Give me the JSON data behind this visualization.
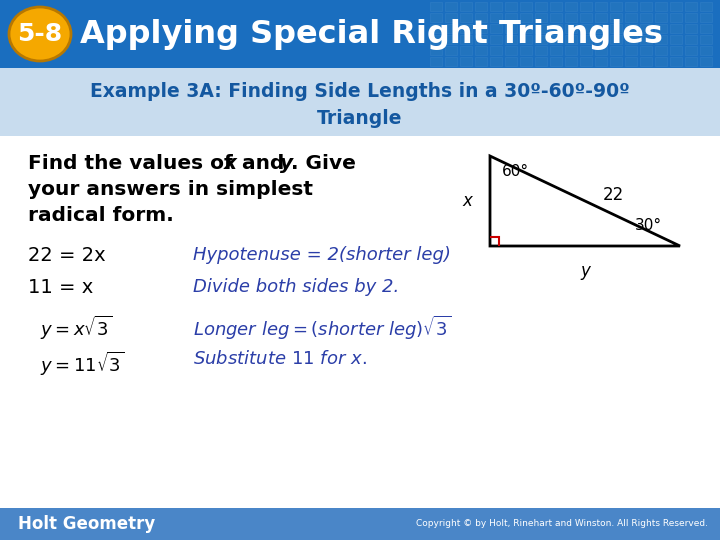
{
  "title_badge": "5-8",
  "title_text": "Applying Special Right Triangles",
  "header_bg_color": "#1A6EBF",
  "badge_bg_color": "#F5A800",
  "example_line1": "Example 3A: Finding Side Lengths in a 30º-60º-90º",
  "example_line2": "Triangle",
  "example_color": "#1458A0",
  "subheader_bg": "#C8DCEE",
  "body_bg_color": "#ffffff",
  "step_left_color": "#000000",
  "step_right_color": "#2B3EA8",
  "footer_text": "Holt Geometry",
  "footer_bg": "#4A86C8",
  "copyright_text": "Copyright © by Holt, Rinehart and Winston. All Rights Reserved.",
  "triangle_color": "#000000",
  "right_angle_color": "#CC0000",
  "angle_label_60": "60°",
  "angle_label_30": "30°",
  "tri_label_22": "22",
  "tri_label_x": "x",
  "tri_label_y": "y",
  "outer_bg": "#B8D0E8"
}
